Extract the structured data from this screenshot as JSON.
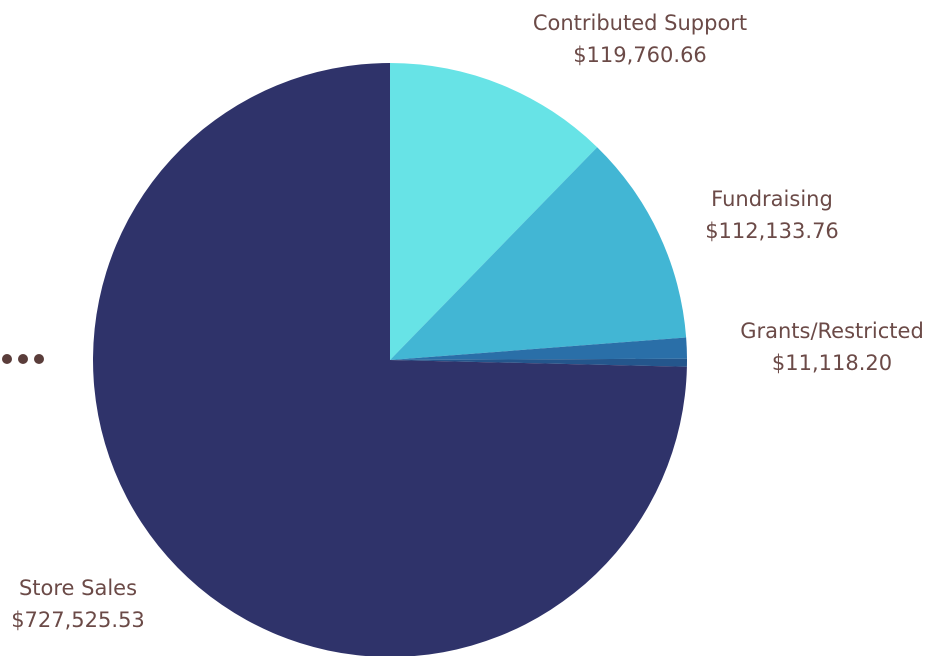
{
  "chart_data": {
    "type": "pie",
    "start_angle": "12 o'clock",
    "direction": "clockwise",
    "slices": [
      {
        "label": "Contributed Support",
        "value": 119760.66,
        "display_value": "$119,760.66",
        "color": "#67e3e6"
      },
      {
        "label": "Fundraising",
        "value": 112133.76,
        "display_value": "$112,133.76",
        "color": "#42b6d4"
      },
      {
        "label": "Grants/Restricted",
        "value": 11118.2,
        "display_value": "$11,118.20",
        "color": "#2a6fa8"
      },
      {
        "value": 4200,
        "color": "#24568c"
      },
      {
        "label": "Store Sales",
        "value": 727525.53,
        "display_value": "$727,525.53",
        "color": "#2f336a"
      }
    ]
  },
  "more_icon": "more-horizontal-icon"
}
